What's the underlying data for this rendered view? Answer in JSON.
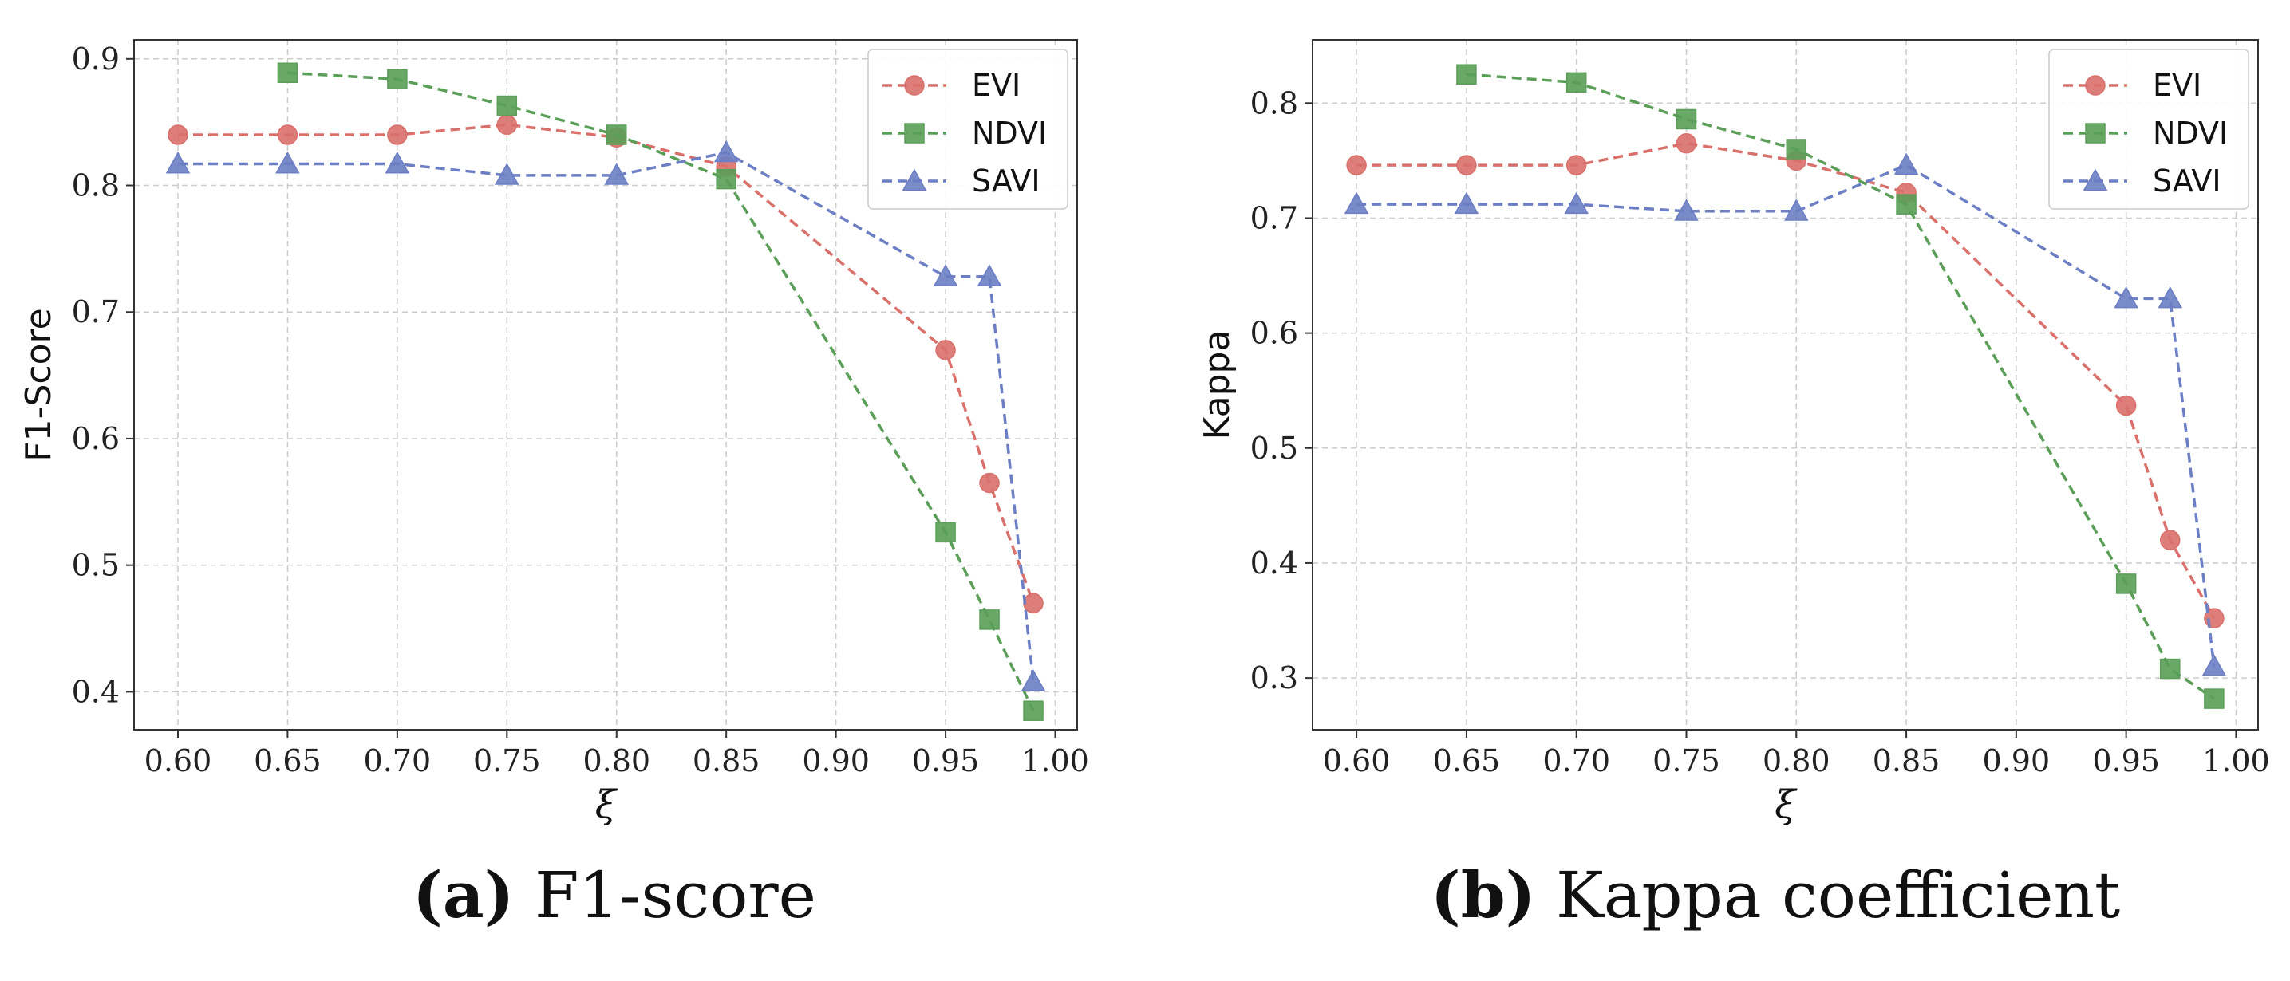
{
  "colors": {
    "evi": "#D9706B",
    "ndvi": "#5A9E58",
    "savi": "#6C7EC4",
    "grid": "#cccccc",
    "axis": "#333333"
  },
  "captions": [
    {
      "letter": "(a)",
      "text": " F1-score"
    },
    {
      "letter": "(b)",
      "text": " Kappa coefficient"
    }
  ],
  "chart_data": [
    {
      "type": "line",
      "title": "",
      "xlabel": "ξ",
      "ylabel": "F1-Score",
      "xlim": [
        0.58,
        1.01
      ],
      "ylim": [
        0.37,
        0.915
      ],
      "xticks": [
        0.6,
        0.65,
        0.7,
        0.75,
        0.8,
        0.85,
        0.9,
        0.95,
        1.0
      ],
      "xtick_labels": [
        "0.60",
        "0.65",
        "0.70",
        "0.75",
        "0.80",
        "0.85",
        "0.90",
        "0.95",
        "1.00"
      ],
      "yticks": [
        0.4,
        0.5,
        0.6,
        0.7,
        0.8,
        0.9
      ],
      "ytick_labels": [
        "0.4",
        "0.5",
        "0.6",
        "0.7",
        "0.8",
        "0.9"
      ],
      "grid": true,
      "legend_position": "top-right",
      "series": [
        {
          "name": "EVI",
          "marker": "circle",
          "x": [
            0.6,
            0.65,
            0.7,
            0.75,
            0.8,
            0.85,
            0.95,
            0.97,
            0.99
          ],
          "y": [
            0.84,
            0.84,
            0.84,
            0.848,
            0.838,
            0.815,
            0.67,
            0.565,
            0.47
          ]
        },
        {
          "name": "NDVI",
          "marker": "square",
          "x": [
            0.65,
            0.7,
            0.75,
            0.8,
            0.85,
            0.95,
            0.97,
            0.99
          ],
          "y": [
            0.889,
            0.884,
            0.863,
            0.84,
            0.805,
            0.526,
            0.457,
            0.385
          ]
        },
        {
          "name": "SAVI",
          "marker": "triangle",
          "x": [
            0.6,
            0.65,
            0.7,
            0.75,
            0.8,
            0.85,
            0.95,
            0.97,
            0.99
          ],
          "y": [
            0.817,
            0.817,
            0.817,
            0.808,
            0.808,
            0.826,
            0.728,
            0.728,
            0.408
          ]
        }
      ]
    },
    {
      "type": "line",
      "title": "",
      "xlabel": "ξ",
      "ylabel": "Kappa",
      "xlim": [
        0.58,
        1.01
      ],
      "ylim": [
        0.255,
        0.855
      ],
      "xticks": [
        0.6,
        0.65,
        0.7,
        0.75,
        0.8,
        0.85,
        0.9,
        0.95,
        1.0
      ],
      "xtick_labels": [
        "0.60",
        "0.65",
        "0.70",
        "0.75",
        "0.80",
        "0.85",
        "0.90",
        "0.95",
        "1.00"
      ],
      "yticks": [
        0.3,
        0.4,
        0.5,
        0.6,
        0.7,
        0.8
      ],
      "ytick_labels": [
        "0.3",
        "0.4",
        "0.5",
        "0.6",
        "0.7",
        "0.8"
      ],
      "grid": true,
      "legend_position": "top-right",
      "series": [
        {
          "name": "EVI",
          "marker": "circle",
          "x": [
            0.6,
            0.65,
            0.7,
            0.75,
            0.8,
            0.85,
            0.95,
            0.97,
            0.99
          ],
          "y": [
            0.746,
            0.746,
            0.746,
            0.765,
            0.75,
            0.722,
            0.537,
            0.42,
            0.352
          ]
        },
        {
          "name": "NDVI",
          "marker": "square",
          "x": [
            0.65,
            0.7,
            0.75,
            0.8,
            0.85,
            0.95,
            0.97,
            0.99
          ],
          "y": [
            0.825,
            0.818,
            0.786,
            0.76,
            0.712,
            0.382,
            0.308,
            0.282
          ]
        },
        {
          "name": "SAVI",
          "marker": "triangle",
          "x": [
            0.6,
            0.65,
            0.7,
            0.75,
            0.8,
            0.85,
            0.95,
            0.97,
            0.99
          ],
          "y": [
            0.712,
            0.712,
            0.712,
            0.706,
            0.706,
            0.746,
            0.63,
            0.63,
            0.31
          ]
        }
      ]
    }
  ]
}
